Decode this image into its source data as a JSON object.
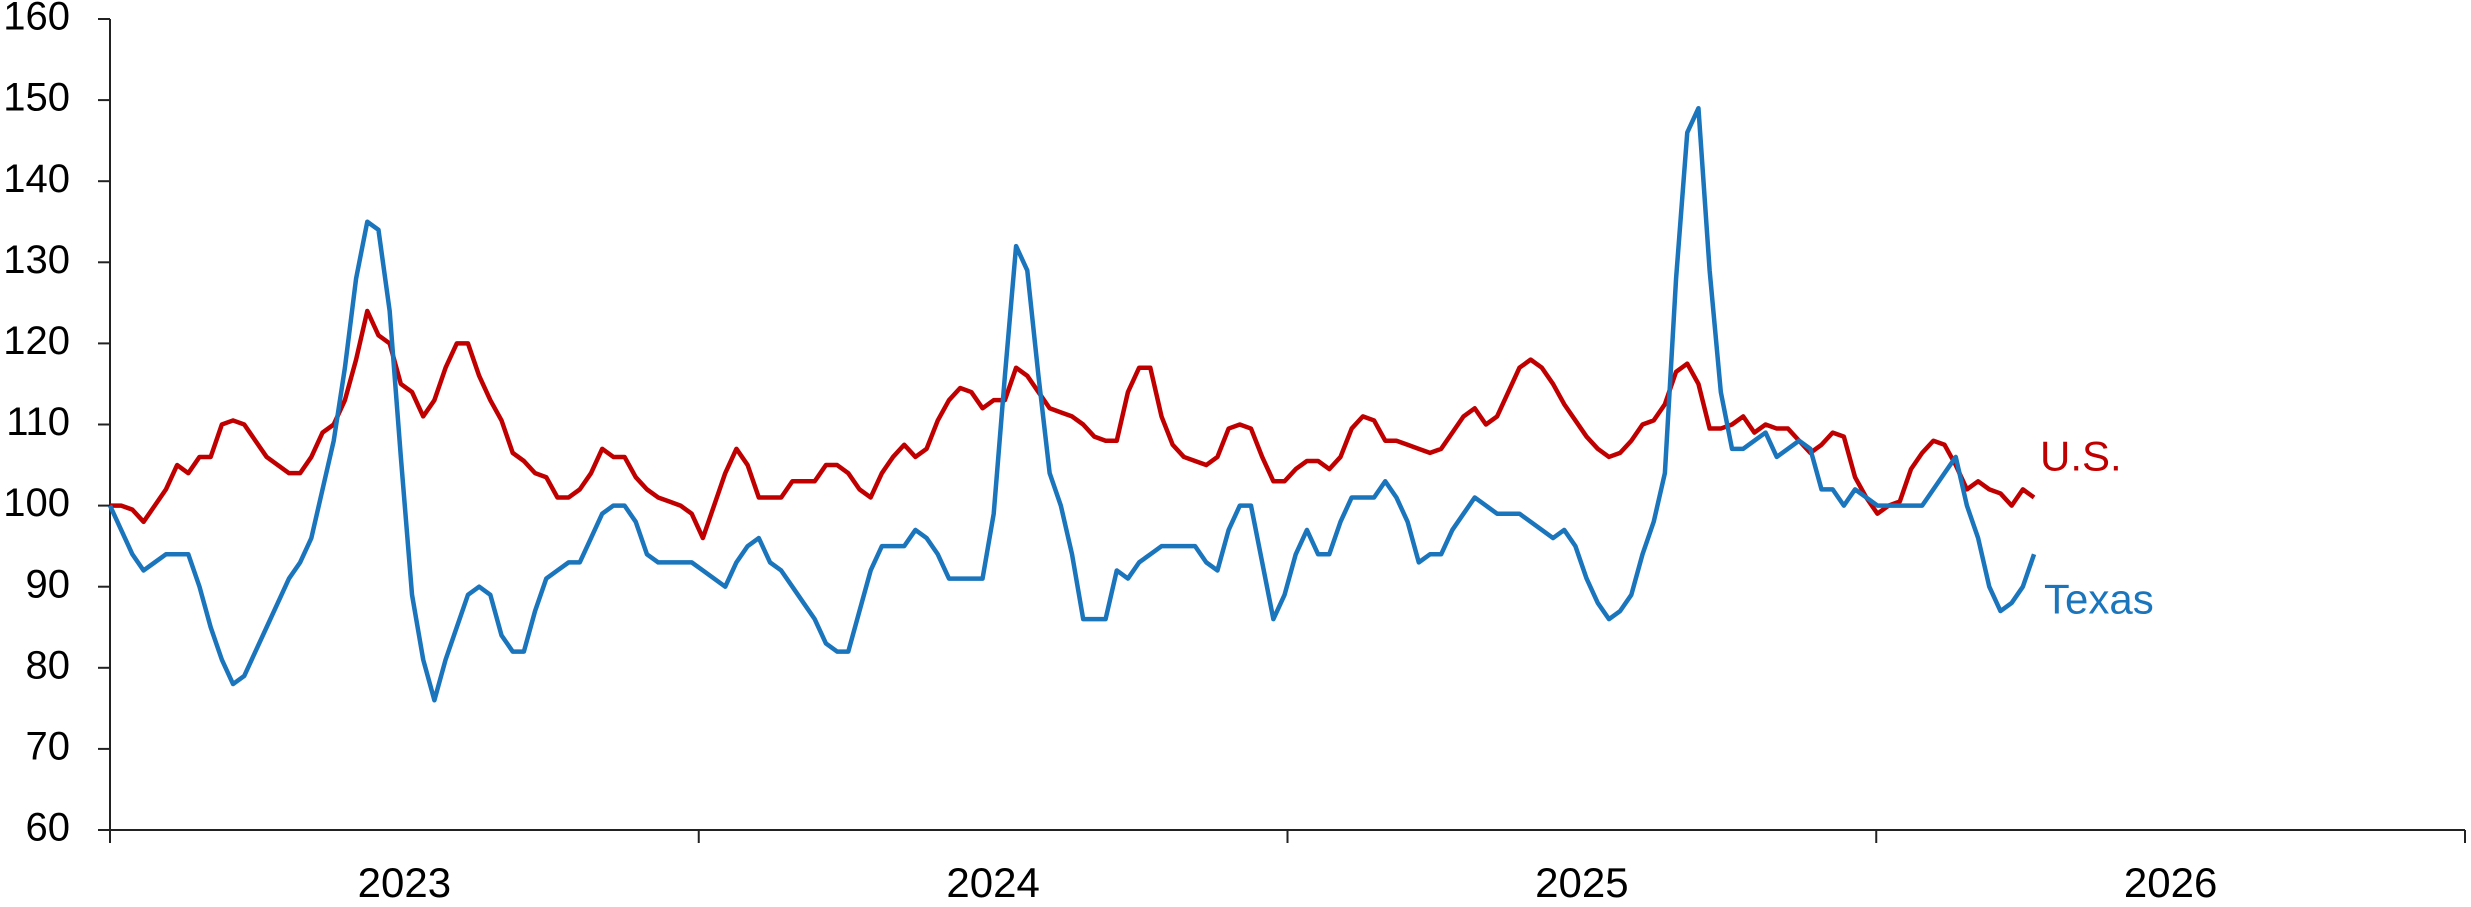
{
  "chart_data": {
    "type": "line",
    "x": [
      2023,
      2023.019,
      2023.038,
      2023.057,
      2023.076,
      2023.095,
      2023.114,
      2023.133,
      2023.152,
      2023.171,
      2023.19,
      2023.209,
      2023.228,
      2023.247,
      2023.266,
      2023.285,
      2023.304,
      2023.323,
      2023.342,
      2023.361,
      2023.38,
      2023.399,
      2023.418,
      2023.437,
      2023.456,
      2023.475,
      2023.494,
      2023.513,
      2023.532,
      2023.551,
      2023.57,
      2023.589,
      2023.608,
      2023.627,
      2023.646,
      2023.665,
      2023.684,
      2023.703,
      2023.722,
      2023.741,
      2023.76,
      2023.779,
      2023.798,
      2023.817,
      2023.836,
      2023.855,
      2023.874,
      2023.893,
      2023.912,
      2023.931,
      2023.95,
      2023.969,
      2023.988,
      2024.007,
      2024.026,
      2024.045,
      2024.064,
      2024.083,
      2024.102,
      2024.121,
      2024.14,
      2024.159,
      2024.178,
      2024.197,
      2024.216,
      2024.235,
      2024.254,
      2024.273,
      2024.292,
      2024.311,
      2024.33,
      2024.349,
      2024.368,
      2024.387,
      2024.406,
      2024.425,
      2024.444,
      2024.463,
      2024.482,
      2024.501,
      2024.52,
      2024.539,
      2024.558,
      2024.577,
      2024.596,
      2024.615,
      2024.634,
      2024.653,
      2024.672,
      2024.691,
      2024.71,
      2024.729,
      2024.748,
      2024.767,
      2024.786,
      2024.805,
      2024.824,
      2024.843,
      2024.862,
      2024.881,
      2024.9,
      2024.919,
      2024.938,
      2024.957,
      2024.976,
      2024.995,
      2025.014,
      2025.033,
      2025.052,
      2025.071,
      2025.09,
      2025.109,
      2025.128,
      2025.147,
      2025.166,
      2025.185,
      2025.204,
      2025.223,
      2025.242,
      2025.261,
      2025.28,
      2025.299,
      2025.318,
      2025.337,
      2025.356,
      2025.375,
      2025.394,
      2025.413,
      2025.432,
      2025.451,
      2025.47,
      2025.489,
      2025.508,
      2025.527,
      2025.546,
      2025.565,
      2025.584,
      2025.603,
      2025.622,
      2025.641,
      2025.66,
      2025.679,
      2025.698,
      2025.717,
      2025.736,
      2025.755,
      2025.774,
      2025.793,
      2025.812,
      2025.831,
      2025.85,
      2025.869,
      2025.888,
      2025.907,
      2025.926,
      2025.945,
      2025.964,
      2025.983,
      2026.002,
      2026.021,
      2026.04,
      2026.059,
      2026.078,
      2026.097,
      2026.116,
      2026.135,
      2026.154,
      2026.173,
      2026.192,
      2026.211,
      2026.23,
      2026.249,
      2026.268
    ],
    "series": [
      {
        "name": "U.S.",
        "color": "#c00000",
        "values": [
          100,
          100,
          99.5,
          98,
          100,
          102,
          105,
          104,
          106,
          106,
          110,
          110.5,
          110,
          108,
          106,
          105,
          104,
          104,
          106,
          109,
          110,
          113,
          118,
          124,
          121,
          120,
          115,
          114,
          111,
          113,
          117,
          120,
          120,
          116,
          113,
          110.5,
          106.5,
          105.5,
          104,
          103.5,
          101,
          101,
          102,
          104,
          107,
          106,
          106,
          103.5,
          102,
          101,
          100.5,
          100,
          99,
          96,
          100,
          104,
          107,
          105,
          101,
          101,
          101,
          103,
          103,
          103,
          105,
          105,
          104,
          102,
          101,
          104,
          106,
          107.5,
          106,
          107,
          110.5,
          113,
          114.5,
          114,
          112,
          113,
          113,
          117,
          116,
          114,
          112,
          111.5,
          111,
          110,
          108.5,
          108,
          108,
          114,
          117,
          117,
          111,
          107.5,
          106,
          105.5,
          105,
          106,
          109.5,
          110,
          109.5,
          106,
          103,
          103,
          104.5,
          105.5,
          105.5,
          104.5,
          106,
          109.5,
          111,
          110.5,
          108,
          108,
          107.5,
          107,
          106.5,
          107,
          109,
          111,
          112,
          110,
          111,
          114,
          117,
          118,
          117,
          115,
          112.5,
          110.5,
          108.5,
          107,
          106,
          106.5,
          108,
          110,
          110.5,
          112.5,
          116.5,
          117.5,
          115,
          109.5,
          109.5,
          110,
          111,
          109,
          110,
          109.5,
          109.5,
          108,
          106.5,
          107.5,
          109,
          108.5,
          103.5,
          101,
          99,
          100,
          100.5,
          104.5,
          106.5,
          108,
          107.5,
          105,
          102,
          103,
          102,
          101.5,
          100,
          102,
          101
        ]
      },
      {
        "name": "Texas",
        "color": "#1a75bc",
        "values": [
          100,
          97,
          94,
          92,
          93,
          94,
          94,
          94,
          90,
          85,
          81,
          78,
          79,
          82,
          85,
          88,
          91,
          93,
          96,
          102,
          108,
          117,
          128,
          135,
          134,
          124,
          106,
          89,
          81,
          76,
          81,
          85,
          89,
          90,
          89,
          84,
          82,
          82,
          87,
          91,
          92,
          93,
          93,
          96,
          99,
          100,
          100,
          98,
          94,
          93,
          93,
          93,
          93,
          92,
          91,
          90,
          93,
          95,
          96,
          93,
          92,
          90,
          88,
          86,
          83,
          82,
          82,
          87,
          92,
          95,
          95,
          95,
          97,
          96,
          94,
          91,
          91,
          91,
          91,
          99,
          116,
          132,
          129,
          116,
          104,
          100,
          94,
          86,
          86,
          86,
          92,
          91,
          93,
          94,
          95,
          95,
          95,
          95,
          93,
          92,
          97,
          100,
          100,
          93,
          86,
          89,
          94,
          97,
          94,
          94,
          98,
          101,
          101,
          101,
          103,
          101,
          98,
          93,
          94,
          94,
          97,
          99,
          101,
          100,
          99,
          99,
          99,
          98,
          97,
          96,
          97,
          95,
          91,
          88,
          86,
          87,
          89,
          94,
          98,
          104,
          128,
          146,
          149,
          129,
          114,
          107,
          107,
          108,
          109,
          106,
          107,
          108,
          107,
          102,
          102,
          100,
          102,
          101,
          100,
          100,
          100,
          100,
          100,
          102,
          104,
          106,
          100,
          96,
          90,
          87,
          88,
          90,
          94
        ]
      }
    ],
    "xlim": [
      2023,
      2027
    ],
    "xticks": [
      2023,
      2024,
      2025,
      2026,
      2027
    ],
    "year_labels": [
      2023,
      2024,
      2025,
      2026
    ],
    "ylim": [
      60,
      160
    ],
    "yticks": [
      60,
      70,
      80,
      90,
      100,
      110,
      120,
      130,
      140,
      150,
      160
    ],
    "grid": false
  }
}
